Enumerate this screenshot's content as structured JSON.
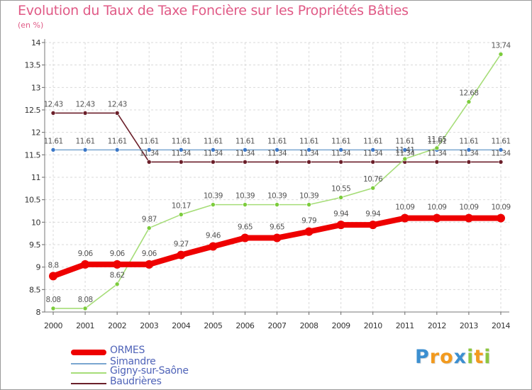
{
  "title": "Evolution du Taux de Taxe Foncière sur les Propriétés Bâties",
  "subtitle": "(en %)",
  "colors": {
    "title": "#e05a86",
    "grid": "#d9d9d9",
    "axis_text": "#333333",
    "label_text": "#555555",
    "legend_text": "#4f63b8"
  },
  "chart_data": {
    "type": "line",
    "title": "Evolution du Taux de Taxe Foncière sur les Propriétés Bâties",
    "ylabel": "(en %)",
    "xlabel": "",
    "ylim": [
      8,
      14
    ],
    "yticks": [
      "8",
      "8.5",
      "9",
      "9.5",
      "10",
      "10.5",
      "11",
      "11.5",
      "12",
      "12.5",
      "13",
      "13.5",
      "14"
    ],
    "categories": [
      "2000",
      "2001",
      "2002",
      "2003",
      "2004",
      "2005",
      "2006",
      "2007",
      "2008",
      "2009",
      "2010",
      "2011",
      "2012",
      "2013",
      "2014"
    ],
    "grid": true,
    "legend_position": "bottom-left",
    "series": [
      {
        "name": "Baudrières",
        "color": "#6b1f2a",
        "dot": "#6b1f2a",
        "width": 1.6,
        "dotSize": 3,
        "values": [
          12.43,
          12.43,
          12.43,
          11.34,
          11.34,
          11.34,
          11.34,
          11.34,
          11.34,
          11.34,
          11.34,
          11.34,
          11.34,
          11.34,
          11.34
        ],
        "labels": [
          "12.43",
          "12.43",
          "12.43",
          "11.34",
          "11.34",
          "11.34",
          "11.34",
          "11.34",
          "11.34",
          "11.34",
          "11.34",
          "11.34",
          "11.34",
          "11.34",
          "11.34"
        ]
      },
      {
        "name": "Simandre",
        "color": "#7aa6d0",
        "dot": "#3c78c8",
        "width": 1.6,
        "dotSize": 3,
        "values": [
          11.61,
          11.61,
          11.61,
          11.61,
          11.61,
          11.61,
          11.61,
          11.61,
          11.61,
          11.61,
          11.61,
          11.61,
          11.61,
          11.61,
          11.61
        ],
        "labels": [
          "11.61",
          "11.61",
          "11.61",
          "11.61",
          "11.61",
          "11.61",
          "11.61",
          "11.61",
          "11.61",
          "11.61",
          "11.61",
          "11.61",
          "11.61",
          "11.61",
          "11.61"
        ]
      },
      {
        "name": "Gigny-sur-Saône",
        "color": "#a6dd78",
        "dot": "#7ccc3c",
        "width": 1.6,
        "dotSize": 3,
        "values": [
          8.08,
          8.08,
          8.62,
          9.87,
          10.17,
          10.39,
          10.39,
          10.39,
          10.39,
          10.55,
          10.76,
          11.41,
          11.65,
          12.68,
          13.74
        ],
        "labels": [
          "8.08",
          "8.08",
          "8.62",
          "9.87",
          "10.17",
          "10.39",
          "10.39",
          "10.39",
          "10.39",
          "10.55",
          "10.76",
          "11.41",
          "11.65",
          "12.68",
          "13.74"
        ]
      },
      {
        "name": "ORMES",
        "color": "#ee0000",
        "dot": "#ee0000",
        "width": 8,
        "dotSize": 6,
        "values": [
          8.8,
          9.06,
          9.06,
          9.06,
          9.27,
          9.46,
          9.65,
          9.65,
          9.79,
          9.94,
          9.94,
          10.09,
          10.09,
          10.09,
          10.09
        ],
        "labels": [
          "8.8",
          "9.06",
          "9.06",
          "9.06",
          "9.27",
          "9.46",
          "9.65",
          "9.65",
          "9.79",
          "9.94",
          "9.94",
          "10.09",
          "10.09",
          "10.09",
          "10.09"
        ]
      }
    ]
  },
  "legend": [
    {
      "name": "ORMES",
      "color": "#ee0000",
      "thickness": 8
    },
    {
      "name": "Simandre",
      "color": "#7aa6d0",
      "thickness": 2
    },
    {
      "name": "Gigny-sur-Saône",
      "color": "#a6dd78",
      "thickness": 2
    },
    {
      "name": "Baudrières",
      "color": "#6b1f2a",
      "thickness": 2
    }
  ],
  "logo": {
    "letters": [
      "P",
      "r",
      "o",
      "x",
      "i",
      "t",
      "i"
    ],
    "colors": [
      "#3c8fd0",
      "#f29a1e",
      "#f29a1e",
      "#3c8fd0",
      "#8cc63f",
      "#f29a1e",
      "#8cc63f"
    ]
  }
}
